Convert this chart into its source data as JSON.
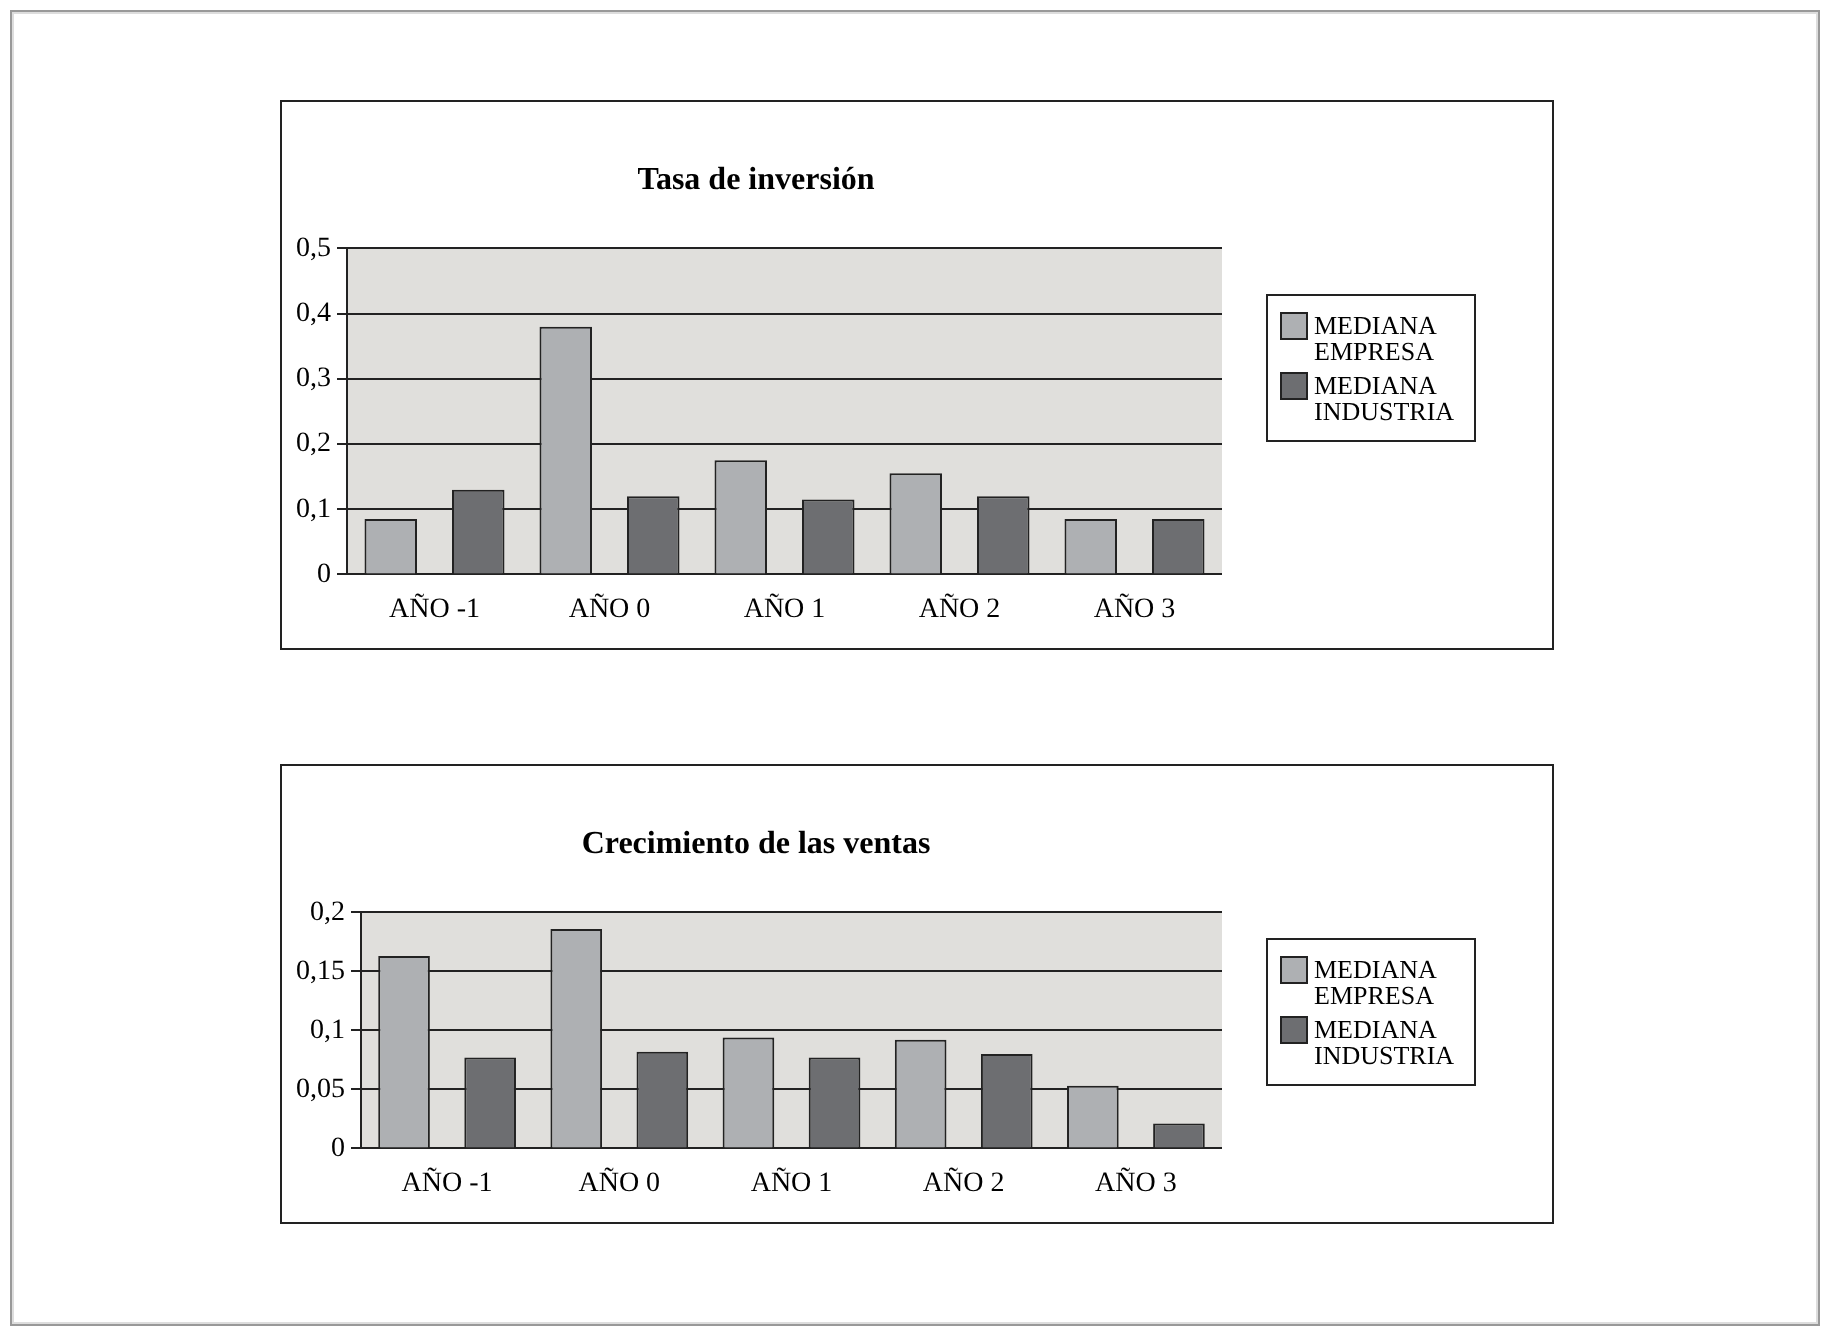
{
  "chart_data": [
    {
      "type": "bar",
      "title": "Tasa de inversión",
      "categories": [
        "AÑO -1",
        "AÑO 0",
        "AÑO 1",
        "AÑO 2",
        "AÑO 3"
      ],
      "series": [
        {
          "name": "MEDIANA EMPRESA",
          "color": "#aeb0b3",
          "values": [
            0.085,
            0.38,
            0.175,
            0.155,
            0.085
          ]
        },
        {
          "name": "MEDIANA INDUSTRIA",
          "color": "#6d6e71",
          "values": [
            0.13,
            0.12,
            0.115,
            0.12,
            0.085
          ]
        }
      ],
      "ylim": [
        0,
        0.5
      ],
      "yticks": [
        0,
        {
          "value": 0.1,
          "label": "0,1"
        },
        {
          "value": 0.2,
          "label": "0,2"
        },
        {
          "value": 0.3,
          "label": "0,3"
        },
        {
          "value": 0.4,
          "label": "0,4"
        },
        {
          "value": 0.5,
          "label": "0,5"
        }
      ],
      "grid": "y",
      "legend": "right"
    },
    {
      "type": "bar",
      "title": "Crecimiento de las ventas",
      "categories": [
        "AÑO -1",
        "AÑO 0",
        "AÑO 1",
        "AÑO 2",
        "AÑO 3"
      ],
      "series": [
        {
          "name": "MEDIANA EMPRESA",
          "color": "#aeb0b3",
          "values": [
            0.163,
            0.186,
            0.094,
            0.092,
            0.053
          ]
        },
        {
          "name": "MEDIANA INDUSTRIA",
          "color": "#6d6e71",
          "values": [
            0.077,
            0.082,
            0.077,
            0.08,
            0.021
          ]
        }
      ],
      "ylim": [
        0,
        0.2
      ],
      "yticks": [
        0,
        {
          "value": 0.05,
          "label": "0,05"
        },
        {
          "value": 0.1,
          "label": "0,1"
        },
        {
          "value": 0.15,
          "label": "0,15"
        },
        {
          "value": 0.2,
          "label": "0,2"
        }
      ],
      "grid": "y",
      "legend": "right"
    }
  ]
}
